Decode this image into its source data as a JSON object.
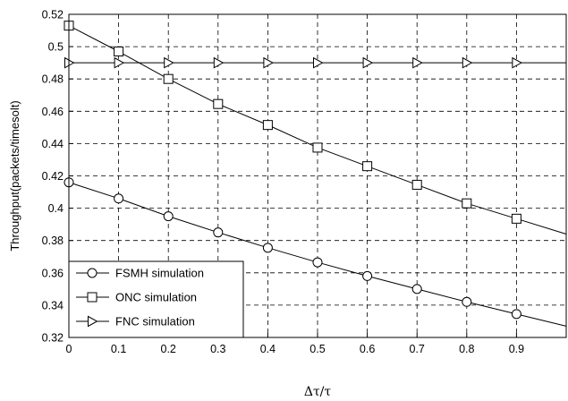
{
  "chart_data": {
    "type": "line",
    "xlabel": "Δτ/τ",
    "ylabel": "Throughput(packets/timesolt)",
    "xlim": [
      0,
      1
    ],
    "ylim": [
      0.32,
      0.52
    ],
    "x_ticks": [
      "0",
      "0.1",
      "0.2",
      "0.3",
      "0.4",
      "0.5",
      "0.6",
      "0.7",
      "0.8",
      "0.9"
    ],
    "y_ticks": [
      "0.32",
      "0.34",
      "0.36",
      "0.38",
      "0.4",
      "0.42",
      "0.44",
      "0.46",
      "0.48",
      "0.5",
      "0.52"
    ],
    "grid": true,
    "grid_style": "dashed",
    "legend_position": "bottom-left",
    "x": [
      0,
      0.1,
      0.2,
      0.3,
      0.4,
      0.5,
      0.6,
      0.7,
      0.8,
      0.9,
      1.0
    ],
    "series": [
      {
        "name": "FSMH simulation",
        "marker": "circle",
        "values": [
          0.416,
          0.406,
          0.395,
          0.385,
          0.3755,
          0.3665,
          0.358,
          0.35,
          0.342,
          0.3345,
          0.327
        ]
      },
      {
        "name": "ONC simulation",
        "marker": "square",
        "values": [
          0.513,
          0.497,
          0.48,
          0.4645,
          0.4515,
          0.4375,
          0.426,
          0.4145,
          0.403,
          0.3935,
          0.384
        ]
      },
      {
        "name": "FNC simulation",
        "marker": "triangle-right",
        "values": [
          0.49,
          0.49,
          0.49,
          0.49,
          0.49,
          0.49,
          0.49,
          0.49,
          0.49,
          0.49,
          0.49
        ]
      }
    ]
  }
}
